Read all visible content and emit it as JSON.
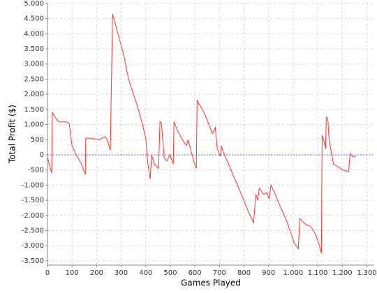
{
  "chart_data": {
    "type": "line",
    "xlabel": "Games Played",
    "ylabel": "Total Profit ($)",
    "color": "#ff3333",
    "zero_line_color": "#6666ff",
    "grid": true,
    "x": [
      0,
      17,
      20,
      30,
      45,
      70,
      88,
      100,
      117,
      135,
      154,
      156,
      180,
      210,
      235,
      245,
      256,
      259,
      265,
      287,
      310,
      330,
      350,
      370,
      387,
      401,
      407,
      418,
      424,
      435,
      452,
      458,
      464,
      475,
      486,
      498,
      512,
      515,
      529,
      549,
      566,
      572,
      595,
      606,
      609,
      623,
      643,
      657,
      671,
      683,
      691,
      703,
      708,
      720,
      737,
      757,
      779,
      799,
      819,
      839,
      848,
      856,
      862,
      879,
      893,
      902,
      910,
      927,
      947,
      970,
      987,
      1004,
      1021,
      1027,
      1050,
      1070,
      1090,
      1107,
      1115,
      1118,
      1127,
      1132,
      1135,
      1141,
      1147,
      1164,
      1184,
      1203,
      1226,
      1232,
      1240,
      1255
    ],
    "values": [
      -100,
      -600,
      1400,
      1250,
      1100,
      1100,
      1050,
      300,
      0,
      -250,
      -650,
      550,
      550,
      500,
      600,
      450,
      150,
      1800,
      4650,
      4000,
      3300,
      2500,
      2000,
      1500,
      1000,
      500,
      -200,
      -800,
      0,
      -300,
      -450,
      1100,
      1050,
      -100,
      -200,
      0,
      -300,
      1100,
      800,
      500,
      300,
      500,
      -200,
      -450,
      1800,
      1600,
      1300,
      1000,
      700,
      900,
      200,
      -50,
      300,
      0,
      -300,
      -700,
      -1100,
      -1500,
      -1900,
      -2250,
      -1300,
      -1500,
      -1100,
      -1300,
      -1250,
      -1450,
      -1000,
      -1300,
      -1700,
      -2100,
      -2500,
      -2900,
      -3100,
      -2100,
      -2300,
      -2350,
      -2600,
      -3000,
      -3250,
      650,
      400,
      200,
      1250,
      1200,
      450,
      -300,
      -400,
      -500,
      -550,
      50,
      -50,
      -50
    ],
    "xlim": [
      0,
      1330
    ],
    "ylim": [
      -3640,
      5020
    ],
    "xticks": [
      0,
      100,
      200,
      300,
      400,
      500,
      600,
      700,
      800,
      900,
      {
        "value": 1000,
        "label": "1.000"
      },
      {
        "value": 1100,
        "label": "1.100"
      },
      {
        "value": 1200,
        "label": "1.200"
      },
      {
        "value": 1300,
        "label": "1.300"
      }
    ],
    "yticks": [
      {
        "value": -3500,
        "label": "-3.500"
      },
      {
        "value": -3000,
        "label": "-3.000"
      },
      {
        "value": -2500,
        "label": "-2.500"
      },
      {
        "value": -2000,
        "label": "-2.000"
      },
      {
        "value": -1500,
        "label": "-1.500"
      },
      {
        "value": -1000,
        "label": "-1.000"
      },
      -500,
      0,
      500,
      {
        "value": 1000,
        "label": "1.000"
      },
      {
        "value": 1500,
        "label": "1.500"
      },
      {
        "value": 2000,
        "label": "2.000"
      },
      {
        "value": 2500,
        "label": "2.500"
      },
      {
        "value": 3000,
        "label": "3.000"
      },
      {
        "value": 3500,
        "label": "3.500"
      },
      {
        "value": 4000,
        "label": "4.000"
      },
      {
        "value": 4500,
        "label": "4.500"
      },
      {
        "value": 5000,
        "label": "5.000"
      }
    ]
  }
}
